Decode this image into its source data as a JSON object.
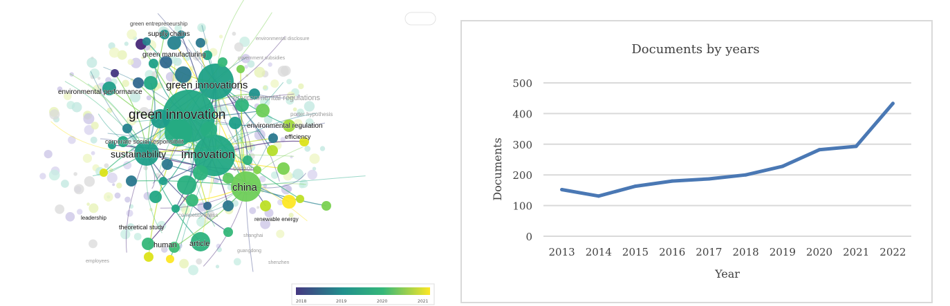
{
  "network": {
    "labels": [
      {
        "id": "green-entrepreneurship",
        "text": "green entrepreneurship",
        "size": 8,
        "color": "#444",
        "faint": false
      },
      {
        "id": "supply-chains",
        "text": "supply chains",
        "size": 10,
        "color": "#111",
        "faint": false
      },
      {
        "id": "environmental-disclosure",
        "text": "environmental disclosure",
        "size": 7,
        "color": "#9a9a9a",
        "faint": true
      },
      {
        "id": "green-manufacturing",
        "text": "green manufacturing",
        "size": 10,
        "color": "#111",
        "faint": false
      },
      {
        "id": "government-subsidies",
        "text": "government subsidies",
        "size": 7,
        "color": "#9a9a9a",
        "faint": true
      },
      {
        "id": "environmental-performance",
        "text": "environmental performance",
        "size": 10,
        "color": "#111",
        "faint": false
      },
      {
        "id": "green-innovations",
        "text": "green innovations",
        "size": 15,
        "color": "#111",
        "faint": false
      },
      {
        "id": "environmental-regulations",
        "text": "environmental regulations",
        "size": 11,
        "color": "#9a9a9a",
        "faint": true
      },
      {
        "id": "green-innovation",
        "text": "green innovation",
        "size": 19,
        "color": "#111",
        "faint": false
      },
      {
        "id": "porter-hypothesis",
        "text": "porter hypothesis",
        "size": 8,
        "color": "#9a9a9a",
        "faint": true
      },
      {
        "id": "environmental-regulation",
        "text": "environmental regulation",
        "size": 10,
        "color": "#111",
        "faint": false
      },
      {
        "id": "efficiency",
        "text": "efficiency",
        "size": 9,
        "color": "#111",
        "faint": false
      },
      {
        "id": "corporate-social-responsibility",
        "text": "corporate social responsibilit",
        "size": 9,
        "color": "#333",
        "faint": false
      },
      {
        "id": "sustainability",
        "text": "sustainability",
        "size": 14,
        "color": "#111",
        "faint": false
      },
      {
        "id": "innovation",
        "text": "innovation",
        "size": 17,
        "color": "#111",
        "faint": false
      },
      {
        "id": "carbon",
        "text": "carbon",
        "size": 10,
        "color": "#9a9a9a",
        "faint": true
      },
      {
        "id": "china",
        "text": "china",
        "size": 15,
        "color": "#111",
        "faint": false
      },
      {
        "id": "leadership",
        "text": "leadership",
        "size": 8,
        "color": "#111",
        "faint": false
      },
      {
        "id": "theoretical-study",
        "text": "theoretical study",
        "size": 9,
        "color": "#111",
        "faint": false
      },
      {
        "id": "competitiveness",
        "text": "competitiveness",
        "size": 8,
        "color": "#9a9a9a",
        "faint": true
      },
      {
        "id": "renewable-energy",
        "text": "renewable energy",
        "size": 8,
        "color": "#111",
        "faint": false
      },
      {
        "id": "human",
        "text": "human",
        "size": 11,
        "color": "#111",
        "faint": false
      },
      {
        "id": "article",
        "text": "article",
        "size": 11,
        "color": "#111",
        "faint": false
      },
      {
        "id": "shanghai",
        "text": "shanghai",
        "size": 7,
        "color": "#9a9a9a",
        "faint": true
      },
      {
        "id": "guangdong",
        "text": "guangdong",
        "size": 7,
        "color": "#9a9a9a",
        "faint": true
      },
      {
        "id": "shenzhen",
        "text": "shenzhen",
        "size": 7,
        "color": "#9a9a9a",
        "faint": true
      },
      {
        "id": "employees",
        "text": "employees",
        "size": 7,
        "color": "#9a9a9a",
        "faint": true
      }
    ],
    "legend": {
      "ticks": [
        "2018",
        "2019",
        "2020",
        "2021"
      ],
      "color_start": "#453781",
      "color_mid": "#1f9e89",
      "color_end": "#fde725"
    }
  },
  "chart_data": {
    "type": "line",
    "title": "Documents by years",
    "xlabel": "Year",
    "ylabel": "Documents",
    "categories": [
      "2013",
      "2014",
      "2015",
      "2016",
      "2017",
      "2018",
      "2019",
      "2020",
      "2021",
      "2022"
    ],
    "series": [
      {
        "values": [
          152,
          131,
          163,
          180,
          187,
          200,
          228,
          282,
          293,
          433
        ],
        "color": "#4a78b4"
      }
    ],
    "ylim": [
      0,
      500
    ],
    "yticks": [
      "0",
      "100",
      "200",
      "300",
      "400",
      "500"
    ],
    "grid": true,
    "legend": "none"
  }
}
